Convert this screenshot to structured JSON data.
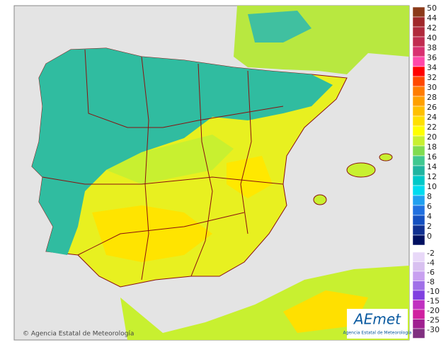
{
  "copyright": "© Agencia Estatal de Meteorología",
  "logo": {
    "name": "AEmet",
    "subtitle": "Agencia Estatal de Meteorología"
  },
  "legend": {
    "warm": [
      {
        "value": 50,
        "color": "#8b3a1a"
      },
      {
        "value": 44,
        "color": "#a0282a"
      },
      {
        "value": 42,
        "color": "#b02a3c"
      },
      {
        "value": 40,
        "color": "#c02c50"
      },
      {
        "value": 38,
        "color": "#d83070"
      },
      {
        "value": 36,
        "color": "#ff48a8"
      },
      {
        "value": 34,
        "color": "#ff0000"
      },
      {
        "value": 32,
        "color": "#ff4800"
      },
      {
        "value": 30,
        "color": "#ff7c00"
      },
      {
        "value": 28,
        "color": "#ffa000"
      },
      {
        "value": 26,
        "color": "#ffc000"
      },
      {
        "value": 24,
        "color": "#ffe000"
      },
      {
        "value": 22,
        "color": "#ffff00"
      },
      {
        "value": 20,
        "color": "#c8f030"
      },
      {
        "value": 18,
        "color": "#80dc50"
      },
      {
        "value": 16,
        "color": "#40c890"
      },
      {
        "value": 14,
        "color": "#20b4a0"
      },
      {
        "value": 12,
        "color": "#00c8c8"
      },
      {
        "value": 10,
        "color": "#00dcf0"
      },
      {
        "value": 8,
        "color": "#20a0f0"
      },
      {
        "value": 6,
        "color": "#2070e0"
      },
      {
        "value": 4,
        "color": "#1450c0"
      },
      {
        "value": 2,
        "color": "#103090"
      },
      {
        "value": 0,
        "color": "#001060"
      }
    ],
    "cold": [
      {
        "value": -2,
        "color": "#e8d8f8"
      },
      {
        "value": -4,
        "color": "#d8c0f0"
      },
      {
        "value": -6,
        "color": "#c8a0f0"
      },
      {
        "value": -8,
        "color": "#a070e8"
      },
      {
        "value": -10,
        "color": "#8040e0"
      },
      {
        "value": -15,
        "color": "#c030c0"
      },
      {
        "value": -20,
        "color": "#d020a0"
      },
      {
        "value": -25,
        "color": "#a02090"
      },
      {
        "value": -30,
        "color": "#803080"
      }
    ]
  }
}
